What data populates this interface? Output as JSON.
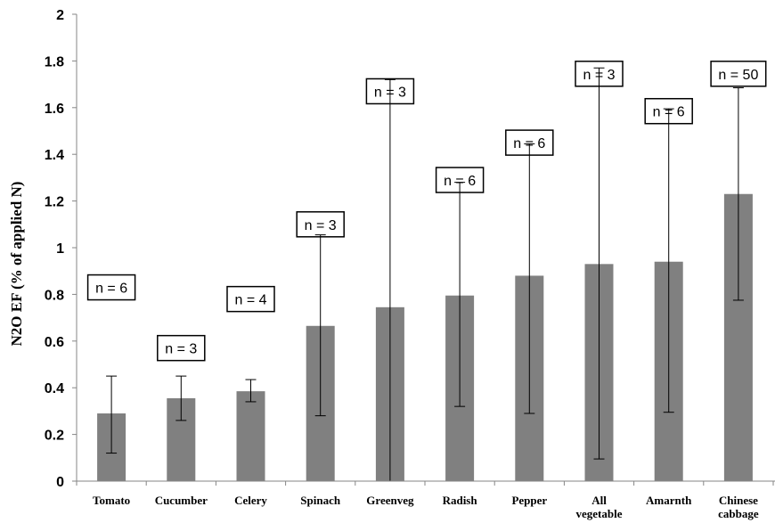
{
  "chart_data": {
    "type": "bar",
    "title": "",
    "ylabel": "N2O EF (% of applied N)",
    "xlabel": "",
    "ylim": [
      0,
      2
    ],
    "yticks": [
      "0",
      "0.2",
      "0.4",
      "0.6",
      "0.8",
      "1",
      "1.2",
      "1.4",
      "1.6",
      "1.8",
      "2"
    ],
    "grid": false,
    "categories": [
      [
        "Tomato"
      ],
      [
        "Cucumber"
      ],
      [
        "Celery"
      ],
      [
        "Spinach"
      ],
      [
        "Greenveg"
      ],
      [
        "Radish"
      ],
      [
        "Pepper"
      ],
      [
        "All",
        "vegetable"
      ],
      [
        "Amarnth"
      ],
      [
        "Chinese",
        "cabbage"
      ]
    ],
    "values": [
      0.29,
      0.355,
      0.385,
      0.665,
      0.745,
      0.795,
      0.88,
      0.93,
      0.94,
      1.23
    ],
    "error_low": [
      0.12,
      0.26,
      0.34,
      0.28,
      0.0,
      0.32,
      0.29,
      0.095,
      0.295,
      0.775
    ],
    "error_high": [
      0.45,
      0.45,
      0.435,
      1.055,
      1.72,
      1.28,
      1.445,
      1.77,
      1.595,
      1.685
    ],
    "annotations": [
      "n = 6",
      "n = 3",
      "n = 4",
      "n = 3",
      "n = 3",
      "n = 6",
      "n = 6",
      "n = 3",
      "n = 6",
      "n = 50"
    ],
    "annotation_y": [
      0.83,
      0.57,
      0.78,
      1.1,
      1.67,
      1.29,
      1.45,
      1.745,
      1.585,
      1.745
    ]
  }
}
